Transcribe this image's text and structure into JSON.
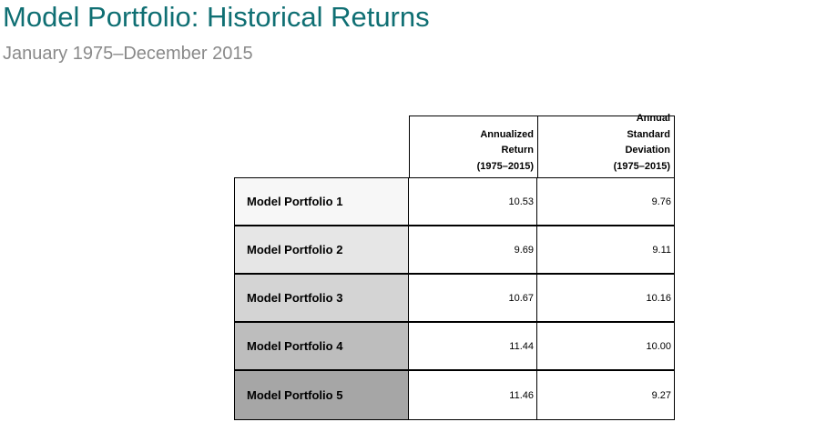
{
  "title": "Model Portfolio: Historical Returns",
  "subtitle": "January 1975–December 2015",
  "table": {
    "headers": {
      "return": [
        "Annualized",
        "Return",
        "(1975–2015)"
      ],
      "std_dev": [
        "Annual",
        "Standard",
        "Deviation",
        "(1975–2015)"
      ]
    },
    "rows": [
      {
        "name": "Model Portfolio 1",
        "return": "10.53",
        "std_dev": "9.76",
        "shade": "#f7f7f7"
      },
      {
        "name": "Model Portfolio 2",
        "return": "9.69",
        "std_dev": "9.11",
        "shade": "#e6e6e6"
      },
      {
        "name": "Model Portfolio 3",
        "return": "10.67",
        "std_dev": "10.16",
        "shade": "#d4d4d4"
      },
      {
        "name": "Model Portfolio 4",
        "return": "11.44",
        "std_dev": "10.00",
        "shade": "#bdbdbd"
      },
      {
        "name": "Model Portfolio 5",
        "return": "11.46",
        "std_dev": "9.27",
        "shade": "#a6a6a6"
      }
    ]
  }
}
